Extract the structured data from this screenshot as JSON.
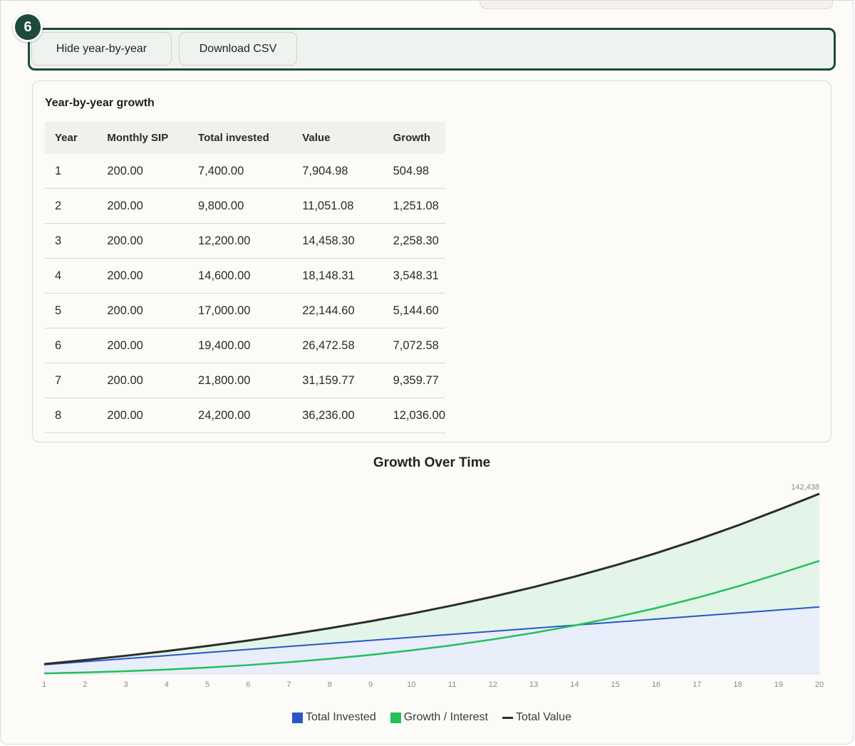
{
  "step_badge": "6",
  "buttons": {
    "hide_label": "Hide year-by-year",
    "csv_label": "Download CSV"
  },
  "table": {
    "title": "Year-by-year growth",
    "columns": [
      "Year",
      "Monthly SIP",
      "Total invested",
      "Value",
      "Growth"
    ],
    "rows": [
      [
        "1",
        "200.00",
        "7,400.00",
        "7,904.98",
        "504.98"
      ],
      [
        "2",
        "200.00",
        "9,800.00",
        "11,051.08",
        "1,251.08"
      ],
      [
        "3",
        "200.00",
        "12,200.00",
        "14,458.30",
        "2,258.30"
      ],
      [
        "4",
        "200.00",
        "14,600.00",
        "18,148.31",
        "3,548.31"
      ],
      [
        "5",
        "200.00",
        "17,000.00",
        "22,144.60",
        "5,144.60"
      ],
      [
        "6",
        "200.00",
        "19,400.00",
        "26,472.58",
        "7,072.58"
      ],
      [
        "7",
        "200.00",
        "21,800.00",
        "31,159.77",
        "9,359.77"
      ],
      [
        "8",
        "200.00",
        "24,200.00",
        "36,236.00",
        "12,036.00"
      ]
    ]
  },
  "colors": {
    "invested": "#2a56c6",
    "growth": "#22c05a",
    "total": "#2a2e2b",
    "invested_fill": "#e8eefa",
    "growth_fill": "#e2f5e8"
  },
  "chart_data": {
    "type": "area",
    "title": "Growth Over Time",
    "x": [
      1,
      2,
      3,
      4,
      5,
      6,
      7,
      8,
      9,
      10,
      11,
      12,
      13,
      14,
      15,
      16,
      17,
      18,
      19,
      20
    ],
    "x_tick_labels": [
      "1",
      "2",
      "3",
      "4",
      "5",
      "6",
      "7",
      "8",
      "9",
      "10",
      "11",
      "12",
      "13",
      "14",
      "15",
      "16",
      "17",
      "18",
      "19",
      "20"
    ],
    "series": [
      {
        "name": "Total Invested",
        "values": [
          7400,
          9800,
          12200,
          14600,
          17000,
          19400,
          21800,
          24200,
          26600,
          29000,
          31400,
          33800,
          36200,
          38600,
          41000,
          43400,
          45800,
          48200,
          50600,
          53000
        ]
      },
      {
        "name": "Growth / Interest",
        "values": [
          505,
          1251,
          2258,
          3548,
          5145,
          7073,
          9360,
          12036,
          15130,
          18690,
          22750,
          27350,
          32540,
          38360,
          44870,
          52140,
          60230,
          69200,
          79130,
          89438
        ]
      },
      {
        "name": "Total Value",
        "values": [
          7905,
          11051,
          14458,
          18148,
          22145,
          26473,
          31160,
          36236,
          41730,
          47690,
          54150,
          61150,
          68740,
          76960,
          85870,
          95540,
          106030,
          117400,
          129730,
          142438
        ]
      }
    ],
    "annotations": [
      "142,438"
    ],
    "ylim": [
      0,
      142438
    ],
    "grid": false,
    "legend": "bottom"
  }
}
